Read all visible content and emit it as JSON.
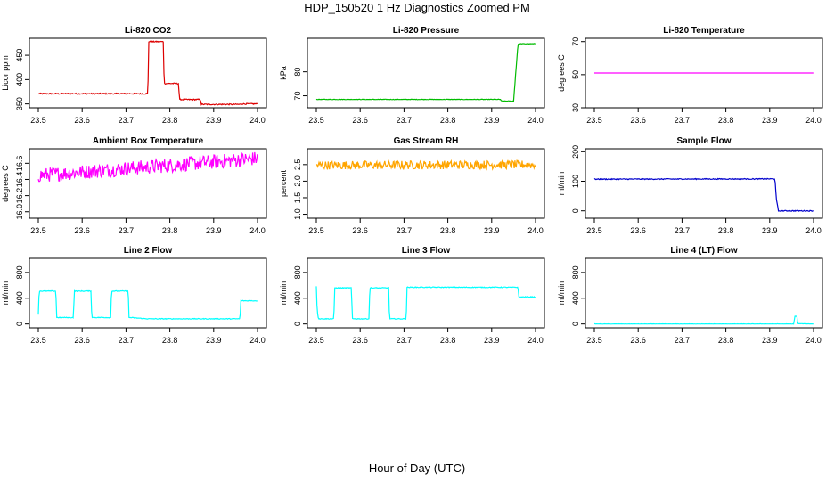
{
  "title": "HDP_150520  1 Hz Diagnostics Zoomed PM",
  "xlabel": "Hour of Day (UTC)",
  "colors": {
    "co2": "#dd0000",
    "pressure": "#00bb00",
    "temperature": "#ff00ff",
    "ambient": "#ff00ff",
    "rh": "#ffa500",
    "sample": "#0000cc",
    "line": "#00ffff"
  },
  "chart_data": [
    {
      "type": "line",
      "title": "Li-820 CO2",
      "ylabel": "Licor ppm",
      "xlim": [
        23.5,
        24.0
      ],
      "ylim": [
        342,
        485
      ],
      "xticks": [
        "23.5",
        "23.6",
        "23.7",
        "23.8",
        "23.9",
        "24.0"
      ],
      "yticks": [
        "350",
        "400",
        "450"
      ],
      "color": "#dd0000",
      "noise": 1.2,
      "x": [
        23.5,
        23.75,
        23.752,
        23.785,
        23.787,
        23.82,
        23.822,
        23.87,
        23.872,
        23.96,
        23.962,
        24.0
      ],
      "y": [
        371,
        371,
        478,
        478,
        392,
        392,
        359,
        359,
        349,
        349,
        350,
        350
      ]
    },
    {
      "type": "line",
      "title": "Li-820 Pressure",
      "ylabel": "kPa",
      "xlim": [
        23.5,
        24.0
      ],
      "ylim": [
        65,
        94
      ],
      "xticks": [
        "23.5",
        "23.6",
        "23.7",
        "23.8",
        "23.9",
        "24.0"
      ],
      "yticks": [
        "70",
        "80"
      ],
      "color": "#00bb00",
      "noise": 0.1,
      "x": [
        23.5,
        23.92,
        23.922,
        23.95,
        23.955,
        23.96,
        23.965,
        24.0
      ],
      "y": [
        68.5,
        68.5,
        67.8,
        67.8,
        80,
        91.5,
        91.7,
        91.7
      ]
    },
    {
      "type": "line",
      "title": "Li-820 Temperature",
      "ylabel": "degrees C",
      "xlim": [
        23.5,
        24.0
      ],
      "ylim": [
        30,
        72
      ],
      "xticks": [
        "23.5",
        "23.6",
        "23.7",
        "23.8",
        "23.9",
        "24.0"
      ],
      "yticks": [
        "30",
        "50",
        "70"
      ],
      "color": "#ff00ff",
      "noise": 0,
      "x": [
        23.5,
        24.0
      ],
      "y": [
        51,
        51
      ]
    },
    {
      "type": "line",
      "title": "Ambient Box Temperature",
      "ylabel": "degrees C",
      "xlim": [
        23.5,
        24.0
      ],
      "ylim": [
        15.92,
        16.78
      ],
      "xticks": [
        "23.5",
        "23.6",
        "23.7",
        "23.8",
        "23.9",
        "24.0"
      ],
      "yticks": [
        "16.0",
        "16.2",
        "16.4",
        "16.6"
      ],
      "color": "#ff00ff",
      "noise": 0.09,
      "x": [
        23.5,
        24.0
      ],
      "y": [
        16.45,
        16.66
      ]
    },
    {
      "type": "line",
      "title": "Gas Stream RH",
      "ylabel": "percent",
      "xlim": [
        23.5,
        24.0
      ],
      "ylim": [
        0.88,
        2.98
      ],
      "xticks": [
        "23.5",
        "23.6",
        "23.7",
        "23.8",
        "23.9",
        "24.0"
      ],
      "yticks": [
        "1.0",
        "1.5",
        "2.0",
        "2.5"
      ],
      "color": "#ffa500",
      "noise": 0.13,
      "x": [
        23.5,
        24.0
      ],
      "y": [
        2.48,
        2.5
      ]
    },
    {
      "type": "line",
      "title": "Sample Flow",
      "ylabel": "ml/min",
      "xlim": [
        23.5,
        24.0
      ],
      "ylim": [
        -25,
        210
      ],
      "xticks": [
        "23.5",
        "23.6",
        "23.7",
        "23.8",
        "23.9",
        "24.0"
      ],
      "yticks": [
        "0",
        "100",
        "200"
      ],
      "color": "#0000cc",
      "noise": 1.5,
      "x": [
        23.5,
        23.91,
        23.912,
        23.915,
        23.92,
        24.0
      ],
      "y": [
        107,
        108,
        108,
        40,
        0,
        0
      ]
    },
    {
      "type": "line",
      "title": "Line 2 Flow",
      "ylabel": "ml/min",
      "xlim": [
        23.5,
        24.0
      ],
      "ylim": [
        -60,
        1020
      ],
      "xticks": [
        "23.5",
        "23.6",
        "23.7",
        "23.8",
        "23.9",
        "24.0"
      ],
      "yticks": [
        "0",
        "400",
        "800"
      ],
      "color": "#00ffff",
      "noise": 6,
      "x": [
        23.5,
        23.502,
        23.54,
        23.542,
        23.58,
        23.582,
        23.62,
        23.622,
        23.665,
        23.667,
        23.705,
        23.707,
        23.75,
        23.96,
        23.962,
        24.0
      ],
      "y": [
        150,
        510,
        510,
        100,
        100,
        510,
        510,
        100,
        100,
        510,
        510,
        100,
        80,
        80,
        360,
        360
      ]
    },
    {
      "type": "line",
      "title": "Line 3 Flow",
      "ylabel": "ml/min",
      "xlim": [
        23.5,
        24.0
      ],
      "ylim": [
        -60,
        1020
      ],
      "xticks": [
        "23.5",
        "23.6",
        "23.7",
        "23.8",
        "23.9",
        "24.0"
      ],
      "yticks": [
        "0",
        "400",
        "800"
      ],
      "color": "#00ffff",
      "noise": 6,
      "x": [
        23.5,
        23.502,
        23.505,
        23.54,
        23.542,
        23.58,
        23.582,
        23.62,
        23.622,
        23.665,
        23.667,
        23.705,
        23.707,
        23.96,
        23.962,
        24.0
      ],
      "y": [
        580,
        200,
        80,
        80,
        560,
        560,
        80,
        80,
        560,
        560,
        80,
        80,
        570,
        570,
        420,
        420
      ]
    },
    {
      "type": "line",
      "title": "Line 4 (LT) Flow",
      "ylabel": "ml/min",
      "xlim": [
        23.5,
        24.0
      ],
      "ylim": [
        -60,
        1020
      ],
      "xticks": [
        "23.5",
        "23.6",
        "23.7",
        "23.8",
        "23.9",
        "24.0"
      ],
      "yticks": [
        "0",
        "400",
        "800"
      ],
      "color": "#00ffff",
      "noise": 2,
      "x": [
        23.5,
        23.955,
        23.957,
        23.962,
        23.964,
        24.0
      ],
      "y": [
        0,
        0,
        120,
        120,
        5,
        0
      ]
    }
  ]
}
